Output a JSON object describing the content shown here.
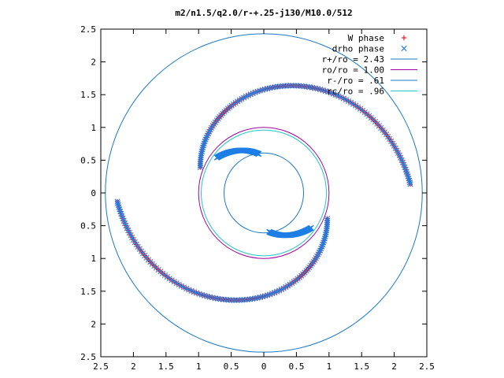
{
  "chart_data": {
    "type": "scatter",
    "title": "m2/n1.5/q2.0/r-+.25-j130/M10.0/512",
    "xlim": [
      -2.5,
      2.5
    ],
    "ylim": [
      -2.5,
      2.5
    ],
    "xtick_labels": [
      "2.5",
      "2",
      "1.5",
      "1",
      "0.5",
      "0",
      "0.5",
      "1",
      "1.5",
      "2",
      "2.5"
    ],
    "ytick_labels": [
      "2.5",
      "2",
      "1.5",
      "1",
      "0.5",
      "0",
      "0.5",
      "1",
      "1.5",
      "2",
      "2.5"
    ],
    "xtick_values": [
      -2.5,
      -2,
      -1.5,
      -1,
      -0.5,
      0,
      0.5,
      1,
      1.5,
      2,
      2.5
    ],
    "ytick_values": [
      2.5,
      2,
      1.5,
      1,
      0.5,
      0,
      -0.5,
      -1,
      -1.5,
      -2,
      -2.5
    ],
    "legend_placement": "top-right",
    "grid": false,
    "series": [
      {
        "name": "W phase",
        "marker": "plus",
        "color": "#ff0000",
        "arms": [
          {
            "r0": 2.25,
            "r1": 1.05,
            "phi0": 3.2,
            "phi1": 5.9
          },
          {
            "r0": 2.25,
            "r1": 1.05,
            "phi0": 0.06,
            "phi1": 2.76
          }
        ]
      },
      {
        "name": "drho phase",
        "marker": "cross",
        "color": "#1e7fe6",
        "arms": [
          {
            "r0": 2.25,
            "r1": 1.05,
            "phi0": 3.2,
            "phi1": 5.9
          },
          {
            "r0": 2.25,
            "r1": 1.05,
            "phi0": 0.06,
            "phi1": 2.76
          },
          {
            "r0": 0.6,
            "r1": 0.9,
            "phi0": 1.7,
            "phi1": 2.5
          },
          {
            "r0": 0.6,
            "r1": 0.9,
            "phi0": 4.85,
            "phi1": 5.65
          }
        ]
      },
      {
        "name": "r+/ro = 2.43",
        "type": "circle",
        "radius": 2.43,
        "color": "#1a78c8"
      },
      {
        "name": "ro/ro = 1.00",
        "type": "circle",
        "radius": 1.0,
        "color": "#a000a0"
      },
      {
        "name": "r-/ro = .61",
        "type": "circle",
        "radius": 0.61,
        "color": "#1a78c8"
      },
      {
        "name": "rc/ro = .96",
        "type": "circle",
        "radius": 0.96,
        "color": "#20c8c8"
      }
    ]
  }
}
